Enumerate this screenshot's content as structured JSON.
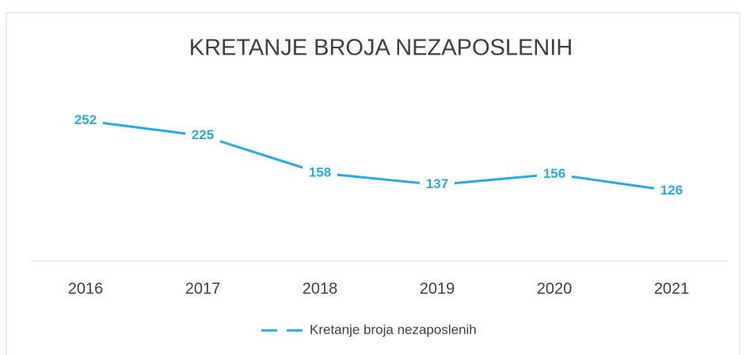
{
  "chart_data": {
    "type": "line",
    "title": "KRETANJE BROJA NEZAPOSLENIH",
    "categories": [
      "2016",
      "2017",
      "2018",
      "2019",
      "2020",
      "2021"
    ],
    "series": [
      {
        "name": "Kretanje broja nezaposlenih",
        "color": "#29abe2",
        "values": [
          252,
          225,
          158,
          137,
          156,
          126
        ]
      }
    ],
    "ylim": [
      0,
      300
    ]
  }
}
